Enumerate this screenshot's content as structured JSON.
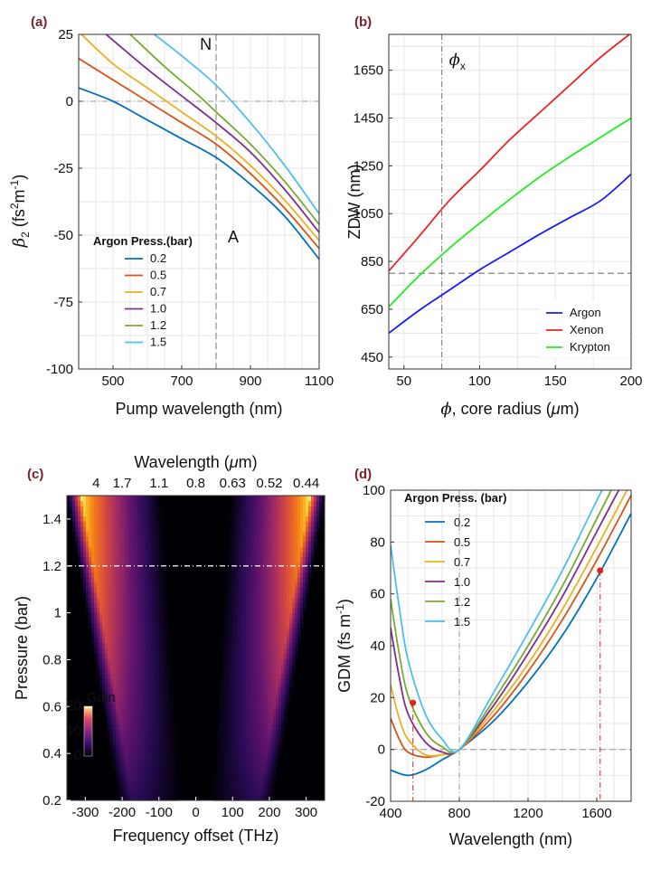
{
  "chart_data": [
    {
      "id": "a",
      "panel_label": "(a)",
      "type": "line",
      "xlabel": "Pump wavelength (nm)",
      "ylabel": "β2 (fs²m⁻¹)",
      "ylabel_parts": {
        "sym": "β",
        "sub": "2",
        "unit1": "(fs",
        "sup1": "2",
        "unit2": "m",
        "sup2": "-1",
        "unit3": ")"
      },
      "xlim": [
        400,
        1100
      ],
      "ylim": [
        -100,
        25
      ],
      "xticks": [
        500,
        700,
        900,
        1100
      ],
      "yticks": [
        -100,
        -75,
        -50,
        -25,
        0,
        25
      ],
      "grid": true,
      "legend_title": "Argon Press.(bar)",
      "legend_position": "center-left",
      "annotations": [
        {
          "text": "N",
          "x": 770,
          "y": 20
        },
        {
          "text": "A",
          "x": 850,
          "y": -52
        }
      ],
      "vline": 800,
      "hline": 0,
      "series": [
        {
          "name": "0.2",
          "color": "#0072BD",
          "points": [
            [
              400,
              5
            ],
            [
              500,
              0
            ],
            [
              600,
              -7
            ],
            [
              700,
              -14
            ],
            [
              800,
              -21
            ],
            [
              900,
              -31
            ],
            [
              1000,
              -43
            ],
            [
              1100,
              -59
            ]
          ]
        },
        {
          "name": "0.5",
          "color": "#D95319",
          "points": [
            [
              400,
              16
            ],
            [
              500,
              8
            ],
            [
              600,
              0
            ],
            [
              700,
              -8
            ],
            [
              800,
              -16
            ],
            [
              900,
              -27
            ],
            [
              1000,
              -40
            ],
            [
              1100,
              -55
            ]
          ]
        },
        {
          "name": "0.7",
          "color": "#EDB120",
          "points": [
            [
              400,
              26
            ],
            [
              500,
              14
            ],
            [
              600,
              5
            ],
            [
              700,
              -4
            ],
            [
              800,
              -13
            ],
            [
              900,
              -24
            ],
            [
              1000,
              -37
            ],
            [
              1100,
              -52
            ]
          ]
        },
        {
          "name": "1.0",
          "color": "#7E2F8E",
          "points": [
            [
              480,
              25
            ],
            [
              600,
              12
            ],
            [
              700,
              2
            ],
            [
              800,
              -8
            ],
            [
              900,
              -19
            ],
            [
              1000,
              -33
            ],
            [
              1100,
              -49
            ]
          ]
        },
        {
          "name": "1.2",
          "color": "#77AC30",
          "points": [
            [
              550,
              25
            ],
            [
              650,
              13
            ],
            [
              750,
              2
            ],
            [
              800,
              -4
            ],
            [
              900,
              -16
            ],
            [
              1000,
              -30
            ],
            [
              1100,
              -46
            ]
          ]
        },
        {
          "name": "1.5",
          "color": "#4DBEEE",
          "points": [
            [
              620,
              25
            ],
            [
              700,
              17
            ],
            [
              800,
              6
            ],
            [
              900,
              -8
            ],
            [
              1000,
              -24
            ],
            [
              1100,
              -42
            ]
          ]
        }
      ]
    },
    {
      "id": "b",
      "panel_label": "(b)",
      "type": "line",
      "xlabel": "ϕ, core radius (μm)",
      "xlabel_parts": {
        "sym": "ϕ",
        "rest": ", core radius (",
        "mu": "μ",
        "tail": "m)"
      },
      "ylabel": "ZDW (nm)",
      "xlim": [
        40,
        200
      ],
      "ylim": [
        400,
        1800
      ],
      "xticks": [
        50,
        100,
        150,
        200
      ],
      "yticks": [
        450,
        650,
        850,
        1050,
        1250,
        1450,
        1650
      ],
      "grid": true,
      "legend_position": "bottom-right",
      "annotation": {
        "sym": "ϕ",
        "sub": "x"
      },
      "vline": 75,
      "hline": 800,
      "series": [
        {
          "name": "Argon",
          "color": "#1a1aff",
          "points": [
            [
              40,
              550
            ],
            [
              60,
              645
            ],
            [
              80,
              730
            ],
            [
              100,
              815
            ],
            [
              120,
              890
            ],
            [
              140,
              965
            ],
            [
              160,
              1035
            ],
            [
              180,
              1105
            ],
            [
              200,
              1215
            ]
          ]
        },
        {
          "name": "Xenon",
          "color": "#ee2222",
          "points": [
            [
              40,
              810
            ],
            [
              60,
              955
            ],
            [
              80,
              1105
            ],
            [
              100,
              1230
            ],
            [
              120,
              1360
            ],
            [
              140,
              1475
            ],
            [
              160,
              1590
            ],
            [
              180,
              1705
            ],
            [
              200,
              1805
            ]
          ]
        },
        {
          "name": "Krypton",
          "color": "#22ee22",
          "points": [
            [
              40,
              660
            ],
            [
              60,
              790
            ],
            [
              80,
              905
            ],
            [
              100,
              1010
            ],
            [
              120,
              1110
            ],
            [
              140,
              1205
            ],
            [
              160,
              1290
            ],
            [
              180,
              1370
            ],
            [
              200,
              1450
            ]
          ]
        }
      ]
    },
    {
      "id": "c",
      "panel_label": "(c)",
      "type": "heatmap",
      "xlabel": "Frequency offset  (THz)",
      "ylabel": "Pressure (bar)",
      "top_xlabel": "Wavelength (μm)",
      "top_xlabel_parts": {
        "pre": "Wavelength (",
        "mu": "μ",
        "post": "m)"
      },
      "xlim": [
        -350,
        350
      ],
      "ylim": [
        0.2,
        1.5
      ],
      "xticks": [
        -300,
        -200,
        -100,
        0,
        100,
        200,
        300
      ],
      "yticks": [
        0.2,
        0.4,
        0.6,
        0.8,
        1,
        1.2,
        1.4
      ],
      "top_ticks": [
        {
          "label": "4",
          "offset": -300
        },
        {
          "label": "1.7",
          "offset": -200
        },
        {
          "label": "1.1",
          "offset": -100
        },
        {
          "label": "0.8",
          "offset": 0
        },
        {
          "label": "0.63",
          "offset": 100
        },
        {
          "label": "0.52",
          "offset": 200
        },
        {
          "label": "0.44",
          "offset": 300
        }
      ],
      "hline": 1.2,
      "colorbar": {
        "title": "Gain",
        "min": 0,
        "max": 20,
        "ticks": [
          0,
          10,
          20
        ]
      }
    },
    {
      "id": "d",
      "panel_label": "(d)",
      "type": "line",
      "xlabel": "Wavelength (nm)",
      "ylabel": "GDM (fs m⁻¹)",
      "ylabel_parts": {
        "pre": "GDM (fs m",
        "sup": "-1",
        "post": ")"
      },
      "xlim": [
        400,
        1800
      ],
      "ylim": [
        -20,
        100
      ],
      "xticks": [
        400,
        800,
        1200,
        1600
      ],
      "yticks": [
        -20,
        0,
        20,
        40,
        60,
        80,
        100
      ],
      "grid": true,
      "legend_title": "Argon Press. (bar)",
      "legend_position": "top-left",
      "vline": 800,
      "hline": 0,
      "markers": [
        {
          "x": 530,
          "y": 18
        },
        {
          "x": 1620,
          "y": 69
        }
      ],
      "marker_color": "#dd2222",
      "series": [
        {
          "name": "0.2",
          "color": "#0072BD",
          "points": [
            [
              400,
              -8
            ],
            [
              500,
              -10
            ],
            [
              600,
              -8
            ],
            [
              700,
              -4
            ],
            [
              800,
              0
            ],
            [
              1000,
              11
            ],
            [
              1200,
              26
            ],
            [
              1400,
              44
            ],
            [
              1600,
              66
            ],
            [
              1800,
              91
            ]
          ]
        },
        {
          "name": "0.5",
          "color": "#D95319",
          "points": [
            [
              400,
              12
            ],
            [
              450,
              4
            ],
            [
              500,
              -1
            ],
            [
              600,
              -3
            ],
            [
              700,
              -2
            ],
            [
              800,
              0
            ],
            [
              1000,
              13
            ],
            [
              1200,
              30
            ],
            [
              1400,
              50
            ],
            [
              1600,
              73
            ],
            [
              1800,
              98
            ]
          ]
        },
        {
          "name": "0.7",
          "color": "#EDB120",
          "points": [
            [
              400,
              25
            ],
            [
              450,
              12
            ],
            [
              500,
              4
            ],
            [
              600,
              -2
            ],
            [
              700,
              -2
            ],
            [
              800,
              0
            ],
            [
              1000,
              15
            ],
            [
              1200,
              33
            ],
            [
              1400,
              54
            ],
            [
              1600,
              78
            ],
            [
              1800,
              103
            ]
          ]
        },
        {
          "name": "1.0",
          "color": "#7E2F8E",
          "points": [
            [
              400,
              47
            ],
            [
              450,
              28
            ],
            [
              500,
              14
            ],
            [
              600,
              3
            ],
            [
              700,
              -1
            ],
            [
              800,
              0
            ],
            [
              1000,
              17
            ],
            [
              1200,
              37
            ],
            [
              1400,
              59
            ],
            [
              1600,
              84
            ],
            [
              1800,
              109
            ]
          ]
        },
        {
          "name": "1.2",
          "color": "#77AC30",
          "points": [
            [
              400,
              58
            ],
            [
              450,
              37
            ],
            [
              500,
              21
            ],
            [
              600,
              7
            ],
            [
              700,
              1
            ],
            [
              800,
              0
            ],
            [
              1000,
              19
            ],
            [
              1200,
              40
            ],
            [
              1400,
              63
            ],
            [
              1600,
              89
            ],
            [
              1800,
              115
            ]
          ]
        },
        {
          "name": "1.5",
          "color": "#4DBEEE",
          "points": [
            [
              400,
              79
            ],
            [
              450,
              55
            ],
            [
              500,
              35
            ],
            [
              600,
              14
            ],
            [
              700,
              4
            ],
            [
              800,
              0
            ],
            [
              1000,
              22
            ],
            [
              1200,
              45
            ],
            [
              1400,
              69
            ],
            [
              1600,
              96
            ],
            [
              1800,
              122
            ]
          ]
        }
      ]
    }
  ]
}
